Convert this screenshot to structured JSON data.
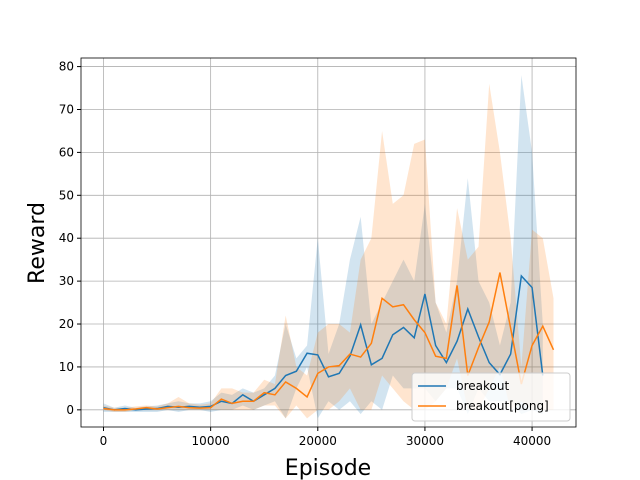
{
  "chart_data": {
    "type": "line",
    "x_label": "Episode",
    "y_label": "Reward",
    "x": [
      0,
      1000,
      2000,
      3000,
      4000,
      5000,
      6000,
      7000,
      8000,
      9000,
      10000,
      11000,
      12000,
      13000,
      14000,
      15000,
      16000,
      17000,
      18000,
      19000,
      20000,
      21000,
      22000,
      23000,
      24000,
      25000,
      26000,
      27000,
      28000,
      29000,
      30000,
      31000,
      32000,
      33000,
      34000,
      35000,
      36000,
      37000,
      38000,
      39000,
      40000,
      41000,
      42000
    ],
    "series": [
      {
        "name": "breakout",
        "color": "#1f77b4",
        "values": [
          0.5,
          0,
          0.3,
          0,
          0.2,
          0.3,
          0.8,
          0.6,
          0.8,
          0.6,
          0.8,
          2,
          1.5,
          3.5,
          2,
          3.5,
          5,
          8,
          9,
          13.2,
          12.8,
          7.7,
          8.5,
          12.5,
          19.8,
          10.5,
          12,
          17.5,
          19.2,
          16.8,
          27,
          15,
          11,
          16,
          23.5,
          17,
          11,
          8.2,
          13,
          31.2,
          28.5,
          8,
          null
        ],
        "band_lower": [
          -0.5,
          -0.5,
          -0.5,
          -0.5,
          -0.5,
          -0.5,
          0,
          -0.5,
          0,
          0,
          -0.5,
          0,
          0,
          1,
          0,
          1,
          2,
          -2,
          5,
          10,
          -2,
          2,
          0,
          2,
          -1,
          2,
          0,
          8,
          5,
          5,
          5,
          2,
          5,
          5,
          -1,
          5,
          2,
          2,
          2,
          -1,
          0,
          -1,
          null
        ],
        "band_upper": [
          1.5,
          0.5,
          1,
          0.5,
          0.8,
          1,
          1.5,
          2,
          1.5,
          1.5,
          2,
          4,
          3.5,
          5,
          4,
          5,
          8,
          20,
          12,
          15,
          40,
          13,
          20,
          35,
          45,
          20,
          25,
          30,
          35,
          30,
          48,
          25,
          18,
          30,
          54,
          30,
          25,
          15,
          25,
          78,
          60,
          20,
          null
        ]
      },
      {
        "name": "breakout[pong]",
        "color": "#ff7f0e",
        "values": [
          0.3,
          0,
          0,
          0.2,
          0.5,
          0.2,
          0.5,
          0.8,
          0.5,
          0.4,
          0.5,
          2.5,
          1.5,
          2,
          2,
          4,
          3.5,
          6.5,
          5,
          3,
          8.5,
          10,
          10.3,
          13,
          12.3,
          15.5,
          26,
          24,
          24.5,
          21,
          18,
          12.5,
          12,
          29,
          8,
          14.5,
          20.5,
          32,
          19,
          6,
          15,
          19.5,
          14
        ],
        "band_lower": [
          0,
          -0.5,
          -0.5,
          0,
          0,
          0,
          0,
          0,
          0,
          0,
          0,
          0,
          0,
          0,
          0,
          1,
          1,
          -2,
          1,
          -2,
          0,
          0,
          2,
          5,
          0,
          0,
          8,
          5,
          2,
          0,
          0,
          2,
          5,
          12,
          0,
          0,
          5,
          10,
          0,
          2,
          0,
          0,
          0
        ],
        "band_upper": [
          1,
          0.5,
          0.5,
          0.8,
          1,
          0.8,
          1.5,
          3,
          1.5,
          1.2,
          1.5,
          5,
          5,
          4,
          4,
          7,
          6,
          22,
          10,
          8,
          18,
          20,
          20,
          18,
          35,
          40,
          65,
          48,
          50,
          62,
          63,
          25,
          20,
          47,
          35,
          38,
          76,
          60,
          40,
          10,
          42,
          40,
          26
        ]
      }
    ],
    "xlim": [
      -2100,
      44100
    ],
    "ylim": [
      -4,
      82
    ],
    "xticks": [
      0,
      10000,
      20000,
      30000,
      40000
    ],
    "yticks": [
      0,
      10,
      20,
      30,
      40,
      50,
      60,
      70,
      80
    ],
    "grid": true,
    "legend": "lower right"
  }
}
